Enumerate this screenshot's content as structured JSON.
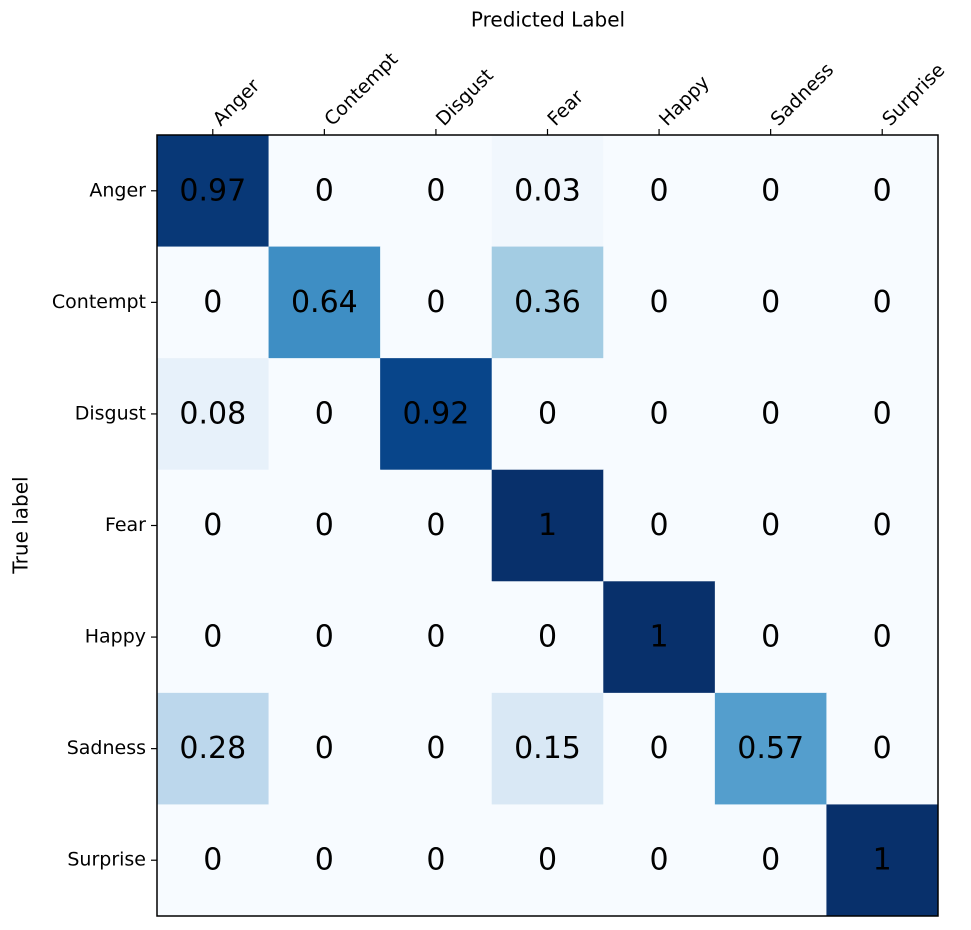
{
  "chart_data": {
    "type": "heatmap",
    "x_label": "Predicted Label",
    "y_label": "True label",
    "x_categories": [
      "Anger",
      "Contempt",
      "Disgust",
      "Fear",
      "Happy",
      "Sadness",
      "Surprise"
    ],
    "y_categories": [
      "Anger",
      "Contempt",
      "Disgust",
      "Fear",
      "Happy",
      "Sadness",
      "Surprise"
    ],
    "values": [
      [
        0.97,
        0,
        0,
        0.03,
        0,
        0,
        0
      ],
      [
        0,
        0.64,
        0,
        0.36,
        0,
        0,
        0
      ],
      [
        0.08,
        0,
        0.92,
        0,
        0,
        0,
        0
      ],
      [
        0,
        0,
        0,
        1,
        0,
        0,
        0
      ],
      [
        0,
        0,
        0,
        0,
        1,
        0,
        0
      ],
      [
        0.28,
        0,
        0,
        0.15,
        0,
        0.57,
        0
      ],
      [
        0,
        0,
        0,
        0,
        0,
        0,
        1
      ]
    ],
    "colormap": "Blues",
    "zlim": [
      0,
      1
    ]
  }
}
